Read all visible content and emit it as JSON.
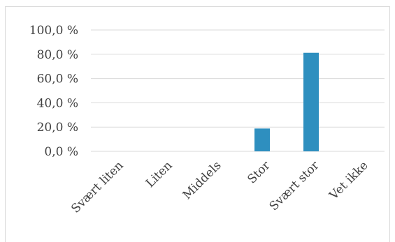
{
  "chart_data": {
    "type": "bar",
    "title": "",
    "xlabel": "",
    "ylabel": "",
    "categories": [
      "Svært liten",
      "Liten",
      "Middels",
      "Stor",
      "Svært stor",
      "Vet ikke"
    ],
    "values": [
      0,
      0,
      0,
      18.8,
      81.2,
      0
    ],
    "ylim": [
      0,
      100
    ],
    "yticks": [
      "0,0 %",
      "20,0 %",
      "40,0 %",
      "60,0 %",
      "80,0 %",
      "100,0 %"
    ],
    "grid": true,
    "legend": "none",
    "bar_color": "#2E8FBF",
    "grid_color": "#d9d9d9",
    "text_color": "#404040"
  }
}
